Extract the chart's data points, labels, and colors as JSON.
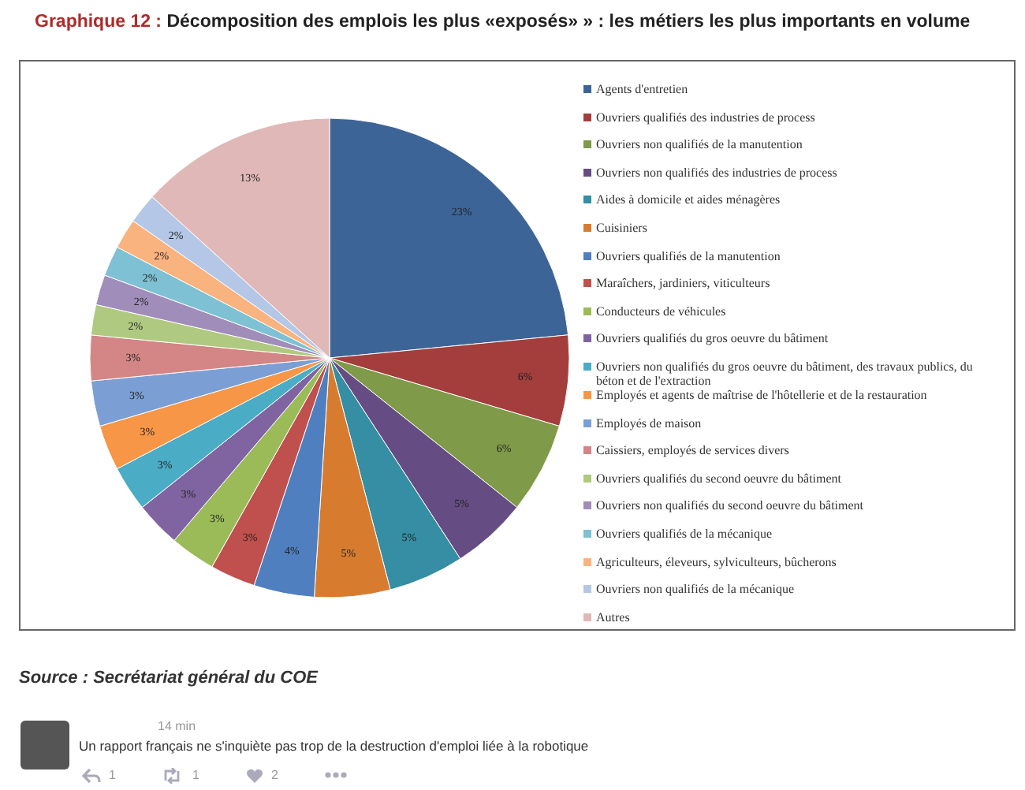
{
  "chart_data": {
    "type": "pie",
    "title": "Graphique 12 : Décomposition des emplois les plus «exposés» » : les métiers les plus importants en volume",
    "categories": [
      "Agents d'entretien",
      "Ouvriers qualifiés des industries de process",
      "Ouvriers non qualifiés de la manutention",
      "Ouvriers non qualifiés des industries de process",
      "Aides à domicile et aides ménagères",
      "Cuisiniers",
      "Ouvriers qualifiés de la manutention",
      "Maraîchers, jardiniers, viticulteurs",
      "Conducteurs de véhicules",
      "Ouvriers qualifiés du gros oeuvre du bâtiment",
      "Ouvriers non qualifiés du gros oeuvre du bâtiment, des travaux publics, du béton et de l'extraction",
      "Employés et agents de maîtrise de l'hôtellerie et de la restauration",
      "Employés de maison",
      "Caissiers, employés de services divers",
      "Ouvriers qualifiés du second oeuvre du bâtiment",
      "Ouvriers non qualifiés du second oeuvre du bâtiment",
      "Ouvriers qualifiés de la mécanique",
      "Agriculteurs, éleveurs, sylviculteurs, bûcherons",
      "Ouvriers non qualifiés de la mécanique",
      "Autres"
    ],
    "values": [
      23,
      6,
      6,
      5,
      5,
      5,
      4,
      3,
      3,
      3,
      3,
      3,
      3,
      3,
      2,
      2,
      2,
      2,
      2,
      13
    ],
    "value_labels": [
      "23%",
      "6%",
      "6%",
      "5%",
      "5%",
      "5%",
      "4%",
      "3%",
      "3%",
      "3%",
      "3%",
      "3%",
      "3%",
      "3%",
      "2%",
      "2%",
      "2%",
      "2%",
      "2%",
      "13%"
    ],
    "colors": [
      "#3d6496",
      "#a33e3c",
      "#7f9a48",
      "#654d84",
      "#358ea3",
      "#d77c2f",
      "#4f7fbf",
      "#c0504d",
      "#9bbb59",
      "#8064a2",
      "#4bacc6",
      "#f79646",
      "#7b9fd4",
      "#d48585",
      "#b0c980",
      "#a08dba",
      "#7fc1d4",
      "#f9b37f",
      "#b4c7e7",
      "#e0b8b8"
    ],
    "legend": "right",
    "annotations": [
      "Source : Secrétariat général du COE",
      "14 min",
      "Un rapport français ne s'inquiète pas trop de la destruction d'emploi liée à la robotique",
      "1",
      "1",
      "2"
    ]
  }
}
